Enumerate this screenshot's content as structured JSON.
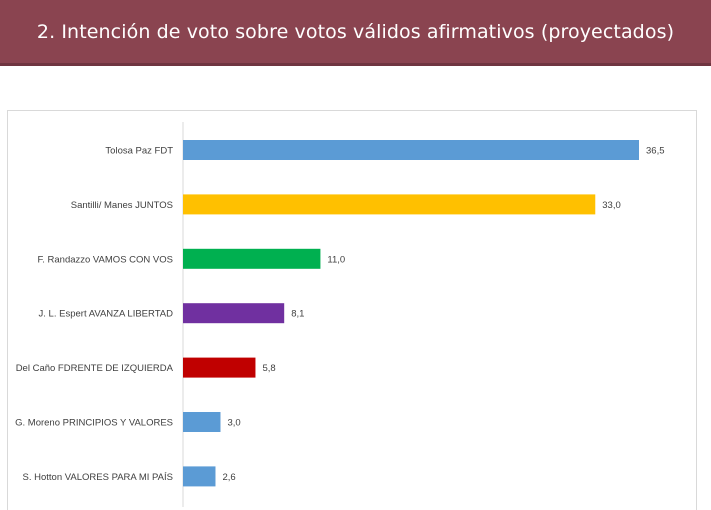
{
  "header": {
    "title": "2. Intención de voto sobre votos válidos afirmativos (proyectados)",
    "background": "#8a4450"
  },
  "chart_data": {
    "type": "bar",
    "orientation": "horizontal",
    "title": "",
    "xlabel": "",
    "ylabel": "",
    "categories": [
      "Tolosa Paz FDT",
      "Santilli/ Manes JUNTOS",
      "F. Randazzo VAMOS CON VOS",
      "J. L. Espert AVANZA LIBERTAD",
      "Del Caño FDRENTE DE IZQUIERDA",
      "G. Moreno PRINCIPIOS Y VALORES",
      "S. Hotton VALORES PARA MI PAÍS"
    ],
    "values": [
      36.5,
      33.0,
      11.0,
      8.1,
      5.8,
      3.0,
      2.6
    ],
    "value_labels": [
      "36,5",
      "33,0",
      "11,0",
      "8,1",
      "5,8",
      "3,0",
      "2,6"
    ],
    "colors": [
      "#5b9bd5",
      "#ffc000",
      "#00b050",
      "#7030a0",
      "#c00000",
      "#5b9bd5",
      "#5b9bd5"
    ],
    "xlim": [
      0,
      40
    ],
    "grid": false,
    "legend": "none"
  }
}
